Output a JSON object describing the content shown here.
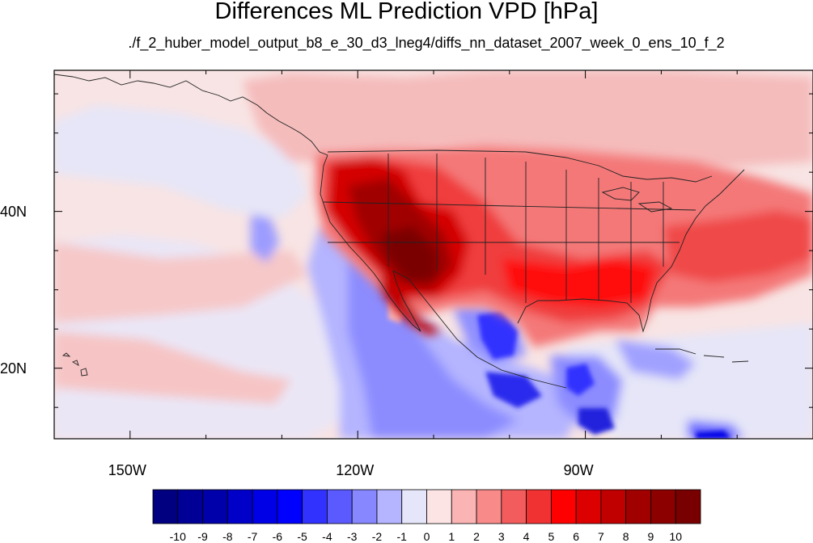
{
  "title": "Differences ML Prediction VPD [hPa]",
  "subtitle": "./f_2_huber_model_output_b8_e_30_d3_lneg4/diffs_nn_dataset_2007_week_0_ens_10_f_2",
  "map": {
    "projection": "cylindrical equidistant",
    "lon_range": [
      -160,
      -60
    ],
    "lat_range": [
      11,
      58
    ],
    "lat_labels": [
      {
        "value": 40,
        "text": "40N"
      },
      {
        "value": 20,
        "text": "20N"
      }
    ],
    "lon_labels": [
      {
        "value": -150,
        "text": "150W"
      },
      {
        "value": -120,
        "text": "120W"
      },
      {
        "value": -90,
        "text": "90W"
      }
    ],
    "field": "VPD difference",
    "units": "hPa"
  },
  "colorbar": {
    "labels": [
      "-10",
      "-9",
      "-8",
      "-7",
      "-6",
      "-5",
      "-4",
      "-3",
      "-2",
      "-1",
      "0",
      "1",
      "2",
      "3",
      "4",
      "5",
      "6",
      "7",
      "8",
      "9",
      "10"
    ],
    "colors": [
      "#000080",
      "#000096",
      "#0000aa",
      "#0000c8",
      "#0000e6",
      "#0000ff",
      "#3232ff",
      "#5a5aff",
      "#8787ff",
      "#b4b4ff",
      "#e6e6fa",
      "#fde4e4",
      "#fbb4b4",
      "#f88a8a",
      "#f25c5c",
      "#f03232",
      "#ff0000",
      "#dc0000",
      "#c00000",
      "#a00000",
      "#8c0000",
      "#780000"
    ]
  },
  "colors": {
    "background": "#ffffff",
    "ocean_tint": "#f5dede",
    "coast": "#222222"
  }
}
